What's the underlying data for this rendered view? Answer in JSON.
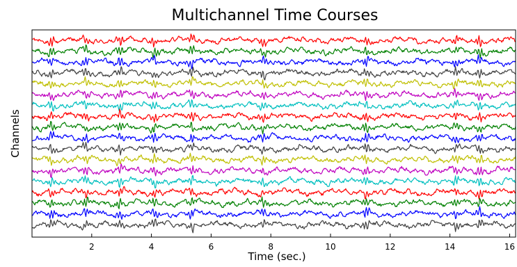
{
  "chart_data": {
    "type": "line",
    "title": "Multichannel Time Courses",
    "xlabel": "Time (sec.)",
    "ylabel": "Channels",
    "xlim": [
      0,
      16.2
    ],
    "x_ticks": [
      2,
      4,
      6,
      8,
      10,
      12,
      14,
      16
    ],
    "grid": false,
    "legend": "none",
    "channel_count": 18,
    "channel_colors": [
      "#ff0000",
      "#008000",
      "#0000ff",
      "#404040",
      "#bfbf00",
      "#bf00bf",
      "#00bfbf"
    ],
    "common_event_times": [
      0.65,
      1.8,
      2.95,
      4.1,
      5.35,
      7.75,
      11.2,
      14.2,
      15.0
    ],
    "amplitude_description": "Uncalibrated; channels stacked with fixed vertical offset"
  }
}
